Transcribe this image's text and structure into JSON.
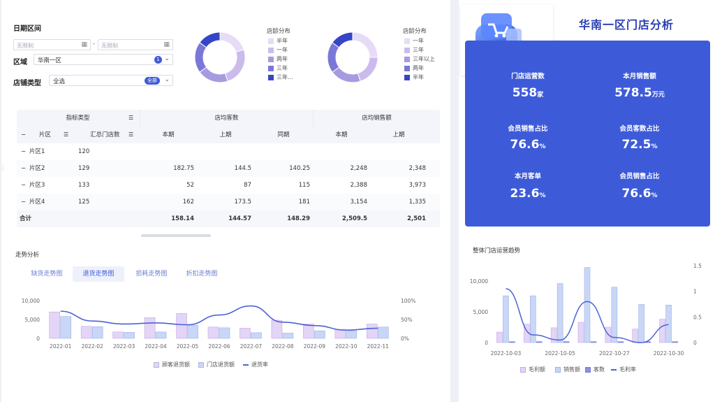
{
  "filters": {
    "date_range_label": "日期区间",
    "date_start_placeholder": "无限制",
    "date_end_placeholder": "无限制",
    "date_separator": "-",
    "region_label": "区域",
    "region_value": "华南一区",
    "region_badge": "1",
    "store_type_label": "店铺类型",
    "store_type_value": "全选",
    "store_type_badge": "全部"
  },
  "donut1": {
    "title": "店龄分布",
    "legend": [
      "半年",
      "一年",
      "两年",
      "三年",
      "三年..."
    ],
    "colors": [
      "#e6dcf6",
      "#cbbbed",
      "#a79be0",
      "#7a78d6",
      "#3645c7"
    ],
    "values": [
      20,
      25,
      20,
      20,
      15
    ]
  },
  "donut2": {
    "title": "店龄分布",
    "legend": [
      "一年",
      "三年",
      "三年以上",
      "两年",
      "半年"
    ],
    "colors": [
      "#e6dcf6",
      "#cbbbed",
      "#a79be0",
      "#7a78d6",
      "#3645c7"
    ],
    "values": [
      25,
      20,
      20,
      20,
      15
    ]
  },
  "table": {
    "header_metric_type": "指标类型",
    "header_group1": "店均客数",
    "header_group2": "店均销售额",
    "col_region": "片区",
    "col_store_count": "汇总门店数",
    "col_current": "本期",
    "col_last": "上期",
    "col_yoy": "同期",
    "col_current2": "本期",
    "col_last2": "上期",
    "rows": [
      {
        "region": "片区1",
        "count": "120",
        "cur": "",
        "last": "",
        "yoy": "",
        "cur2": "",
        "last2": ""
      },
      {
        "region": "片区2",
        "count": "129",
        "cur": "182.75",
        "last": "144.5",
        "yoy": "140.25",
        "cur2": "2,248",
        "last2": "2,348"
      },
      {
        "region": "片区3",
        "count": "133",
        "cur": "52",
        "last": "87",
        "yoy": "115",
        "cur2": "2,388",
        "last2": "3,973"
      },
      {
        "region": "片区4",
        "count": "125",
        "cur": "162",
        "last": "173.5",
        "yoy": "181",
        "cur2": "3,154",
        "last2": "1,335"
      }
    ],
    "total": {
      "label": "合计",
      "cur": "158.14",
      "last": "144.57",
      "yoy": "148.29",
      "cur2": "2,509.5",
      "last2": "2,501"
    }
  },
  "trend": {
    "section_title": "走势分析",
    "tabs": [
      "缺货走势图",
      "退货走势图",
      "损耗走势图",
      "折扣走势图"
    ],
    "active_tab": 1
  },
  "header": {
    "title": "华南一区门店分析"
  },
  "kpis": [
    {
      "label": "门店运营数",
      "value": "558",
      "unit": "家"
    },
    {
      "label": "本月销售额",
      "value": "578.5",
      "unit": "万元"
    },
    {
      "label": "会员销售占比",
      "value": "76.6",
      "unit": "%"
    },
    {
      "label": "会员客数占比",
      "value": "72.5",
      "unit": "%"
    },
    {
      "label": "本月客单",
      "value": "23.6",
      "unit": "%"
    },
    {
      "label": "会员销售占比",
      "value": "76.6",
      "unit": "%"
    }
  ],
  "right_chart_title": "整体门店运营趋势",
  "colors": {
    "accent": "#3d5bd8",
    "bar_light_purple": "#e3d5f5",
    "bar_light_blue": "#c9d6f5",
    "bar_mid": "#8f8ee0",
    "line": "#4a63d6"
  },
  "chart_data": [
    {
      "type": "bar",
      "categories": [
        "2022-01",
        "2022-02",
        "2022-03",
        "2022-04",
        "2022-05",
        "2022-06",
        "2022-07",
        "2022-08",
        "2022-09",
        "2022-10",
        "2022-11"
      ],
      "series": [
        {
          "name": "顾客退货额",
          "type": "bar",
          "values": [
            7000,
            3200,
            1700,
            5500,
            6600,
            3000,
            2700,
            4800,
            3800,
            2400,
            3800
          ]
        },
        {
          "name": "门店退货额",
          "type": "bar",
          "values": [
            5800,
            3100,
            1600,
            1700,
            3500,
            2800,
            1500,
            1400,
            2000,
            2000,
            3000
          ]
        },
        {
          "name": "退货率",
          "type": "line",
          "axis": "right",
          "values": [
            72,
            46,
            38,
            41,
            36,
            62,
            86,
            43,
            34,
            22,
            27
          ]
        }
      ],
      "yticks_left": [
        "0",
        "5,000",
        "10,000"
      ],
      "yticks_right": [
        "0%",
        "50%",
        "100%"
      ],
      "ylim_left": [
        0,
        10000
      ],
      "ylim_right": [
        0,
        100
      ]
    },
    {
      "type": "bar",
      "title": "整体门店运营趋势",
      "categories": [
        "2022-10-03",
        "2022-10-04",
        "2022-10-05",
        "2022-10-06",
        "2022-10-27",
        "2022-10-28",
        "2022-10-30"
      ],
      "xtick_labels": [
        "2022-10-03",
        "2022-10-05",
        "2022-10-27",
        "2022-10-30"
      ],
      "series": [
        {
          "name": "毛利额",
          "type": "bar",
          "values": [
            1700,
            3000,
            2400,
            3300,
            2500,
            2200,
            3800
          ]
        },
        {
          "name": "销售额",
          "type": "bar",
          "values": [
            7600,
            7600,
            9600,
            12200,
            9000,
            6200,
            6100
          ]
        },
        {
          "name": "客数",
          "type": "bar",
          "values": [
            150,
            150,
            150,
            150,
            150,
            150,
            150
          ]
        },
        {
          "name": "毛利率",
          "type": "line",
          "axis": "right",
          "values": [
            1.05,
            0.15,
            0.05,
            0.8,
            0.1,
            0.0,
            0.35
          ]
        }
      ],
      "yticks_left": [
        "0",
        "5,000",
        "10,000"
      ],
      "yticks_right": [
        "0",
        "0.5",
        "1",
        "1.5"
      ],
      "ylim_left": [
        0,
        12500
      ],
      "ylim_right": [
        0,
        1.5
      ]
    }
  ]
}
